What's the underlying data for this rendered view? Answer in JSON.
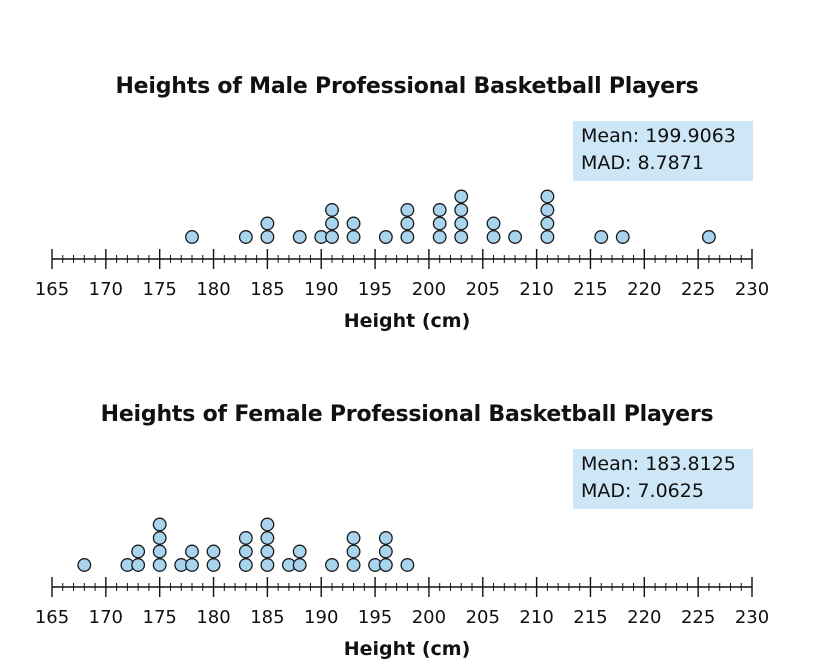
{
  "chart_data": [
    {
      "type": "dot-plot",
      "title": "Heights of Male Professional Basketball Players",
      "xlabel": "Height (cm)",
      "xlim": [
        165,
        230
      ],
      "ticks": [
        165,
        170,
        175,
        180,
        185,
        190,
        195,
        200,
        205,
        210,
        215,
        220,
        225,
        230
      ],
      "stats": {
        "mean": "Mean: 199.9063",
        "mad": "MAD: 8.7871"
      },
      "points": [
        {
          "x": 178,
          "count": 1
        },
        {
          "x": 183,
          "count": 1
        },
        {
          "x": 185,
          "count": 2
        },
        {
          "x": 188,
          "count": 1
        },
        {
          "x": 190,
          "count": 1
        },
        {
          "x": 191,
          "count": 3
        },
        {
          "x": 193,
          "count": 2
        },
        {
          "x": 196,
          "count": 1
        },
        {
          "x": 198,
          "count": 3
        },
        {
          "x": 201,
          "count": 3
        },
        {
          "x": 203,
          "count": 4
        },
        {
          "x": 206,
          "count": 2
        },
        {
          "x": 208,
          "count": 1
        },
        {
          "x": 211,
          "count": 4
        },
        {
          "x": 216,
          "count": 1
        },
        {
          "x": 218,
          "count": 1
        },
        {
          "x": 226,
          "count": 1
        }
      ]
    },
    {
      "type": "dot-plot",
      "title": "Heights of Female Professional Basketball Players",
      "xlabel": "Height (cm)",
      "xlim": [
        165,
        230
      ],
      "ticks": [
        165,
        170,
        175,
        180,
        185,
        190,
        195,
        200,
        205,
        210,
        215,
        220,
        225,
        230
      ],
      "stats": {
        "mean": "Mean: 183.8125",
        "mad": "MAD: 7.0625"
      },
      "points": [
        {
          "x": 168,
          "count": 1
        },
        {
          "x": 172,
          "count": 1
        },
        {
          "x": 173,
          "count": 2
        },
        {
          "x": 175,
          "count": 4
        },
        {
          "x": 177,
          "count": 1
        },
        {
          "x": 178,
          "count": 2
        },
        {
          "x": 180,
          "count": 2
        },
        {
          "x": 183,
          "count": 3
        },
        {
          "x": 185,
          "count": 4
        },
        {
          "x": 187,
          "count": 1
        },
        {
          "x": 188,
          "count": 2
        },
        {
          "x": 191,
          "count": 1
        },
        {
          "x": 193,
          "count": 3
        },
        {
          "x": 195,
          "count": 1
        },
        {
          "x": 196,
          "count": 3
        },
        {
          "x": 198,
          "count": 1
        }
      ]
    }
  ],
  "colors": {
    "dot_fill": "#a9d4ee",
    "dot_stroke": "#1a1a1a",
    "stats_bg": "#cde7f6",
    "axis": "#111111"
  }
}
